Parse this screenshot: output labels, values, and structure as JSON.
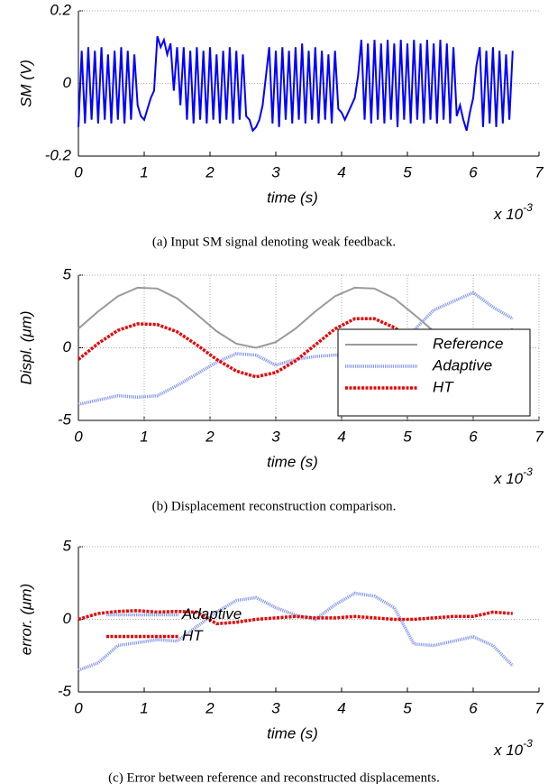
{
  "chart_data": [
    {
      "type": "line",
      "ylabel": "SM (V)",
      "xlabel": "time (s)",
      "x_scale_label": "x 10",
      "x_scale_exponent": "-3",
      "caption": "(a) Input SM signal denoting weak feedback.",
      "xlim": [
        0,
        7
      ],
      "xticks": [
        0,
        1,
        2,
        3,
        4,
        5,
        6,
        7
      ],
      "ylim": [
        -0.2,
        0.2
      ],
      "yticks": [
        -0.2,
        0,
        0.2
      ],
      "grid": "y",
      "x": [
        0,
        0.05,
        0.1,
        0.15,
        0.2,
        0.25,
        0.3,
        0.35,
        0.4,
        0.45,
        0.5,
        0.55,
        0.6,
        0.65,
        0.7,
        0.75,
        0.8,
        0.85,
        0.9,
        0.95,
        1,
        1.05,
        1.1,
        1.15,
        1.2,
        1.25,
        1.3,
        1.35,
        1.4,
        1.45,
        1.5,
        1.55,
        1.6,
        1.65,
        1.7,
        1.75,
        1.8,
        1.85,
        1.9,
        1.95,
        2,
        2.05,
        2.1,
        2.15,
        2.2,
        2.25,
        2.3,
        2.35,
        2.4,
        2.45,
        2.5,
        2.55,
        2.6,
        2.65,
        2.7,
        2.75,
        2.8,
        2.85,
        2.9,
        2.95,
        3,
        3.05,
        3.1,
        3.15,
        3.2,
        3.25,
        3.3,
        3.35,
        3.4,
        3.45,
        3.5,
        3.55,
        3.6,
        3.65,
        3.7,
        3.75,
        3.8,
        3.85,
        3.9,
        3.95,
        4,
        4.05,
        4.1,
        4.15,
        4.2,
        4.25,
        4.3,
        4.35,
        4.4,
        4.45,
        4.5,
        4.55,
        4.6,
        4.65,
        4.7,
        4.75,
        4.8,
        4.85,
        4.9,
        4.95,
        5,
        5.05,
        5.1,
        5.15,
        5.2,
        5.25,
        5.3,
        5.35,
        5.4,
        5.45,
        5.5,
        5.55,
        5.6,
        5.65,
        5.7,
        5.75,
        5.8,
        5.85,
        5.9,
        5.95,
        6,
        6.05,
        6.1,
        6.15,
        6.2,
        6.25,
        6.3,
        6.35,
        6.4,
        6.45,
        6.5,
        6.55,
        6.6
      ],
      "series": [
        {
          "color": "#0000ff",
          "linestyle": "solid",
          "values": [
            -0.12,
            0.09,
            -0.11,
            0.1,
            -0.1,
            0.09,
            -0.11,
            0.1,
            -0.1,
            0.08,
            -0.11,
            0.09,
            -0.1,
            0.1,
            -0.11,
            0.09,
            -0.1,
            0.08,
            -0.06,
            -0.09,
            -0.1,
            -0.07,
            -0.04,
            -0.02,
            0.13,
            0.1,
            0.12,
            0.08,
            0.11,
            -0.02,
            0.1,
            -0.06,
            0.1,
            -0.1,
            0.09,
            -0.11,
            0.1,
            -0.1,
            0.09,
            -0.11,
            0.1,
            -0.1,
            0.08,
            -0.11,
            0.09,
            -0.1,
            0.1,
            -0.11,
            0.09,
            -0.1,
            0.08,
            -0.09,
            -0.1,
            -0.13,
            -0.12,
            -0.1,
            -0.06,
            0.02,
            0.1,
            -0.11,
            0.09,
            -0.12,
            0.1,
            -0.1,
            0.09,
            -0.11,
            0.1,
            -0.1,
            0.11,
            -0.11,
            0.09,
            -0.1,
            0.1,
            -0.11,
            0.09,
            -0.1,
            0.08,
            -0.11,
            0.09,
            -0.07,
            -0.08,
            -0.1,
            -0.08,
            -0.06,
            -0.04,
            0.02,
            0.12,
            -0.1,
            0.11,
            -0.11,
            0.12,
            -0.1,
            0.11,
            -0.11,
            0.12,
            -0.1,
            0.11,
            -0.12,
            0.12,
            -0.1,
            0.11,
            -0.11,
            0.12,
            -0.1,
            0.11,
            -0.11,
            0.12,
            -0.1,
            0.11,
            -0.11,
            0.12,
            -0.1,
            0.11,
            -0.11,
            0.1,
            -0.09,
            -0.06,
            -0.1,
            -0.13,
            -0.08,
            -0.04,
            0.05,
            0.1,
            -0.12,
            0.09,
            -0.11,
            0.1,
            -0.12,
            0.09,
            -0.11,
            0.08,
            -0.1,
            0.09
          ]
        }
      ]
    },
    {
      "type": "line",
      "ylabel": "Displ. (μm)",
      "xlabel": "time (s)",
      "x_scale_label": "x 10",
      "x_scale_exponent": "-3",
      "caption": "(b) Displacement reconstruction comparison.",
      "xlim": [
        0,
        7
      ],
      "xticks": [
        0,
        1,
        2,
        3,
        4,
        5,
        6,
        7
      ],
      "ylim": [
        -5,
        5
      ],
      "yticks": [
        -5,
        0,
        5
      ],
      "grid": "both",
      "legend": "lower right",
      "legend_frame": true,
      "x": [
        0,
        0.3,
        0.6,
        0.9,
        1.2,
        1.5,
        1.8,
        2.1,
        2.4,
        2.7,
        3.0,
        3.3,
        3.6,
        3.9,
        4.2,
        4.5,
        4.8,
        5.1,
        5.4,
        5.7,
        6.0,
        6.3,
        6.6
      ],
      "series": [
        {
          "name": "Reference",
          "color": "#999999",
          "linestyle": "solid",
          "values": [
            1.32,
            2.5,
            3.55,
            4.14,
            4.08,
            3.4,
            2.3,
            1.14,
            0.28,
            0,
            0.39,
            1.32,
            2.5,
            3.55,
            4.14,
            4.08,
            3.4,
            2.3,
            1.14,
            0.28,
            0,
            0.39,
            1.32
          ]
        },
        {
          "name": "Adaptive",
          "color": "#8899ee",
          "linestyle": "dotted",
          "values": [
            -3.9,
            -3.6,
            -3.3,
            -3.4,
            -3.3,
            -2.6,
            -1.8,
            -1.0,
            -0.4,
            -0.5,
            -1.2,
            -0.8,
            -0.6,
            -0.5,
            -0.5,
            -0.4,
            0.2,
            1.2,
            2.6,
            3.2,
            3.8,
            2.8,
            2.0
          ]
        },
        {
          "name": "HT",
          "color": "#ee0000",
          "linestyle": "dashed",
          "values": [
            -0.8,
            0.3,
            1.2,
            1.65,
            1.6,
            1.1,
            0.2,
            -0.8,
            -1.6,
            -2.0,
            -1.7,
            -0.9,
            0.2,
            1.3,
            2.0,
            2.0,
            1.4,
            0.4,
            -0.6,
            null,
            null,
            null,
            null
          ]
        }
      ]
    },
    {
      "type": "line",
      "ylabel": "error. (μm)",
      "xlabel": "time (s)",
      "x_scale_label": "x 10",
      "x_scale_exponent": "-3",
      "caption": "(c) Error between reference and reconstructed displacements.",
      "xlim": [
        0,
        7
      ],
      "xticks": [
        0,
        1,
        2,
        3,
        4,
        5,
        6,
        7
      ],
      "ylim": [
        -5,
        5
      ],
      "yticks": [
        -5,
        0,
        5
      ],
      "grid": "y",
      "legend": "center left",
      "legend_frame": false,
      "x": [
        0,
        0.3,
        0.6,
        0.9,
        1.2,
        1.5,
        1.8,
        2.1,
        2.4,
        2.7,
        3.0,
        3.3,
        3.6,
        3.9,
        4.2,
        4.5,
        4.8,
        5.1,
        5.4,
        5.7,
        6.0,
        6.3,
        6.6
      ],
      "series": [
        {
          "name": "Adaptive",
          "color": "#8899ee",
          "linestyle": "dotted",
          "values": [
            -3.5,
            -3.0,
            -1.8,
            -1.6,
            -1.4,
            -1.5,
            -0.5,
            0.5,
            1.3,
            1.5,
            0.8,
            0.3,
            0,
            1.0,
            1.8,
            1.6,
            0.8,
            -1.7,
            -1.8,
            -1.5,
            -1.2,
            -1.8,
            -3.2
          ]
        },
        {
          "name": "HT",
          "color": "#ee0000",
          "linestyle": "dashed",
          "values": [
            0,
            0.4,
            0.55,
            0.6,
            0.5,
            0.55,
            0.5,
            -0.3,
            -0.2,
            0,
            0.1,
            0.2,
            0.1,
            0.1,
            0.2,
            0.1,
            0,
            0,
            0.1,
            0.2,
            0.2,
            0.5,
            0.4
          ]
        }
      ]
    }
  ]
}
